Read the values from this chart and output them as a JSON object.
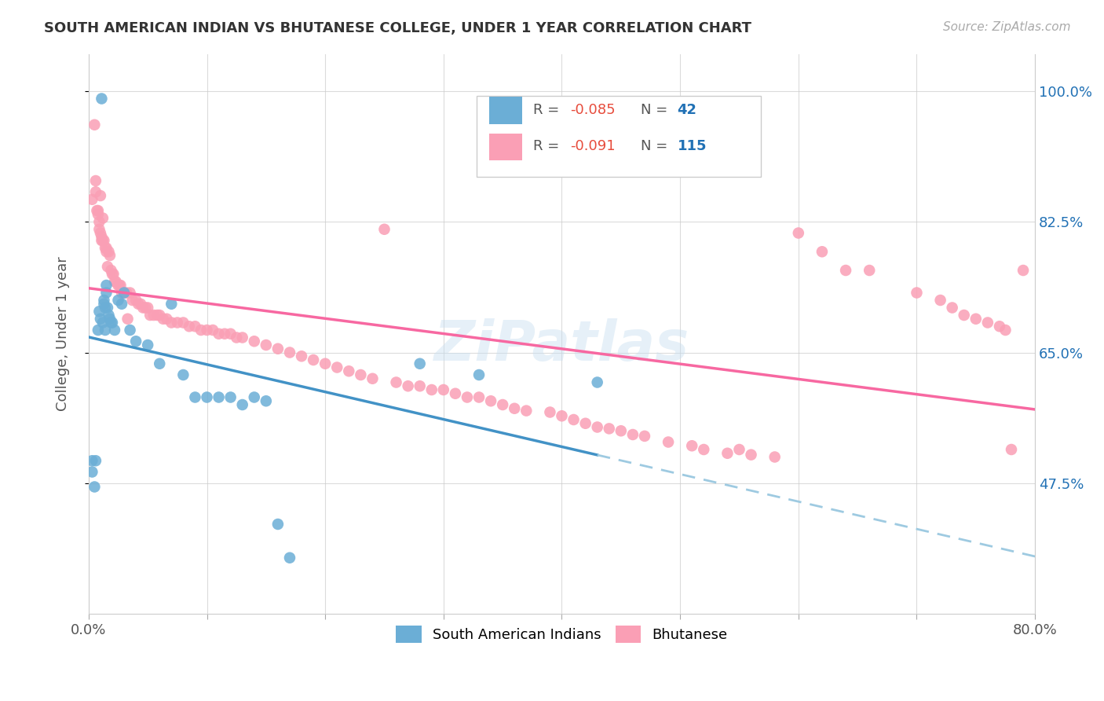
{
  "title": "SOUTH AMERICAN INDIAN VS BHUTANESE COLLEGE, UNDER 1 YEAR CORRELATION CHART",
  "source": "Source: ZipAtlas.com",
  "ylabel": "College, Under 1 year",
  "xmin": 0.0,
  "xmax": 0.8,
  "ymin": 0.3,
  "ymax": 1.05,
  "yticks": [
    0.475,
    0.65,
    0.825,
    1.0
  ],
  "ytick_labels": [
    "47.5%",
    "65.0%",
    "82.5%",
    "100.0%"
  ],
  "color_blue": "#6baed6",
  "color_pink": "#fa9fb5",
  "color_blue_line": "#4292c6",
  "color_blue_dash": "#9ecae1",
  "color_pink_line": "#f768a1",
  "watermark": "ZiPatlas",
  "legend_r1": "-0.085",
  "legend_n1": "42",
  "legend_r2": "-0.091",
  "legend_n2": "115",
  "blue_x": [
    0.003,
    0.003,
    0.005,
    0.006,
    0.008,
    0.009,
    0.01,
    0.011,
    0.012,
    0.013,
    0.013,
    0.014,
    0.014,
    0.015,
    0.015,
    0.016,
    0.017,
    0.018,
    0.019,
    0.02,
    0.022,
    0.025,
    0.028,
    0.03,
    0.035,
    0.04,
    0.05,
    0.06,
    0.07,
    0.08,
    0.09,
    0.1,
    0.11,
    0.12,
    0.13,
    0.14,
    0.15,
    0.16,
    0.17,
    0.28,
    0.33,
    0.43
  ],
  "blue_y": [
    0.505,
    0.49,
    0.47,
    0.505,
    0.68,
    0.705,
    0.695,
    0.99,
    0.69,
    0.715,
    0.72,
    0.71,
    0.68,
    0.73,
    0.74,
    0.71,
    0.7,
    0.695,
    0.69,
    0.69,
    0.68,
    0.72,
    0.715,
    0.73,
    0.68,
    0.665,
    0.66,
    0.635,
    0.715,
    0.62,
    0.59,
    0.59,
    0.59,
    0.59,
    0.58,
    0.59,
    0.585,
    0.42,
    0.375,
    0.635,
    0.62,
    0.61
  ],
  "pink_x": [
    0.003,
    0.005,
    0.006,
    0.006,
    0.007,
    0.008,
    0.008,
    0.009,
    0.009,
    0.01,
    0.01,
    0.011,
    0.011,
    0.012,
    0.012,
    0.013,
    0.014,
    0.015,
    0.015,
    0.016,
    0.017,
    0.018,
    0.019,
    0.02,
    0.021,
    0.022,
    0.023,
    0.025,
    0.026,
    0.027,
    0.028,
    0.03,
    0.032,
    0.033,
    0.035,
    0.037,
    0.04,
    0.042,
    0.044,
    0.046,
    0.048,
    0.05,
    0.052,
    0.055,
    0.058,
    0.06,
    0.063,
    0.066,
    0.07,
    0.075,
    0.08,
    0.085,
    0.09,
    0.095,
    0.1,
    0.105,
    0.11,
    0.115,
    0.12,
    0.125,
    0.13,
    0.14,
    0.15,
    0.16,
    0.17,
    0.18,
    0.19,
    0.2,
    0.21,
    0.22,
    0.23,
    0.24,
    0.25,
    0.26,
    0.27,
    0.28,
    0.29,
    0.3,
    0.31,
    0.32,
    0.33,
    0.34,
    0.35,
    0.36,
    0.37,
    0.39,
    0.4,
    0.41,
    0.42,
    0.43,
    0.44,
    0.45,
    0.46,
    0.47,
    0.49,
    0.51,
    0.52,
    0.54,
    0.55,
    0.56,
    0.58,
    0.6,
    0.62,
    0.64,
    0.66,
    0.7,
    0.72,
    0.73,
    0.74,
    0.75,
    0.76,
    0.77,
    0.775,
    0.78,
    0.79
  ],
  "pink_y": [
    0.855,
    0.955,
    0.88,
    0.865,
    0.84,
    0.84,
    0.835,
    0.825,
    0.815,
    0.86,
    0.81,
    0.805,
    0.8,
    0.83,
    0.8,
    0.8,
    0.79,
    0.79,
    0.785,
    0.765,
    0.785,
    0.78,
    0.76,
    0.755,
    0.755,
    0.745,
    0.745,
    0.74,
    0.74,
    0.74,
    0.73,
    0.73,
    0.73,
    0.695,
    0.73,
    0.72,
    0.72,
    0.715,
    0.715,
    0.71,
    0.71,
    0.71,
    0.7,
    0.7,
    0.7,
    0.7,
    0.695,
    0.695,
    0.69,
    0.69,
    0.69,
    0.685,
    0.685,
    0.68,
    0.68,
    0.68,
    0.675,
    0.675,
    0.675,
    0.67,
    0.67,
    0.665,
    0.66,
    0.655,
    0.65,
    0.645,
    0.64,
    0.635,
    0.63,
    0.625,
    0.62,
    0.615,
    0.815,
    0.61,
    0.605,
    0.605,
    0.6,
    0.6,
    0.595,
    0.59,
    0.59,
    0.585,
    0.58,
    0.575,
    0.572,
    0.57,
    0.565,
    0.56,
    0.555,
    0.55,
    0.548,
    0.545,
    0.54,
    0.538,
    0.53,
    0.525,
    0.52,
    0.515,
    0.52,
    0.513,
    0.51,
    0.81,
    0.785,
    0.76,
    0.76,
    0.73,
    0.72,
    0.71,
    0.7,
    0.695,
    0.69,
    0.685,
    0.68,
    0.52,
    0.76
  ]
}
